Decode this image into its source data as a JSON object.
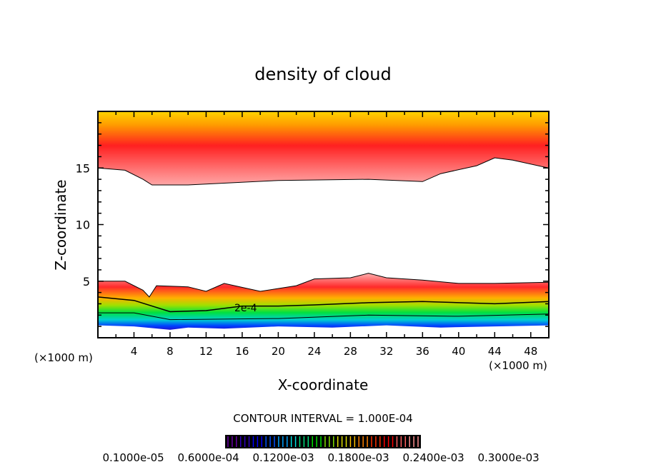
{
  "chart_data": {
    "type": "heatmap",
    "title": "density of cloud",
    "xlabel": "X-coordinate",
    "ylabel": "Z-coordinate",
    "x_unit_label": "(×1000 m)",
    "y_unit_label": "(×1000 m)",
    "xlim": [
      0,
      50
    ],
    "ylim": [
      0,
      20
    ],
    "xticks": [
      4,
      8,
      12,
      16,
      20,
      24,
      28,
      32,
      36,
      40,
      44,
      48
    ],
    "yticks": [
      5,
      10,
      15
    ],
    "contour_interval_text": "CONTOUR INTERVAL = 1.000E-04",
    "contour_label": "2e-4",
    "colorbar_labels": [
      "0.1000e-05",
      "0.6000e-04",
      "0.1200e-03",
      "0.1800e-03",
      "0.2400e-03",
      "0.3000e-03"
    ],
    "colorbar_colors": [
      "#6a00a8",
      "#3000c0",
      "#0000ff",
      "#0050ff",
      "#00a0ff",
      "#00e0e0",
      "#00e080",
      "#00e000",
      "#80e000",
      "#e0e000",
      "#ffc000",
      "#ff8000",
      "#ff3000",
      "#ff0000",
      "#ff6060",
      "#ff9090"
    ],
    "upper_cloud_base": [
      [
        0,
        15
      ],
      [
        3,
        14.8
      ],
      [
        5,
        14
      ],
      [
        6,
        13.5
      ],
      [
        10,
        13.5
      ],
      [
        20,
        13.9
      ],
      [
        30,
        14
      ],
      [
        36,
        13.8
      ],
      [
        38,
        14.5
      ],
      [
        42,
        15.2
      ],
      [
        44,
        15.9
      ],
      [
        46,
        15.7
      ],
      [
        50,
        15
      ]
    ],
    "lower_cloud_top": [
      [
        0,
        5
      ],
      [
        3,
        5
      ],
      [
        5,
        4.2
      ],
      [
        5.7,
        3.6
      ],
      [
        6.5,
        4.6
      ],
      [
        10,
        4.5
      ],
      [
        12,
        4.1
      ],
      [
        14,
        4.8
      ],
      [
        18,
        4.1
      ],
      [
        22,
        4.6
      ],
      [
        24,
        5.2
      ],
      [
        28,
        5.3
      ],
      [
        30,
        5.7
      ],
      [
        32,
        5.3
      ],
      [
        36,
        5.1
      ],
      [
        40,
        4.8
      ],
      [
        44,
        4.8
      ],
      [
        50,
        4.9
      ]
    ],
    "contour_2e-4": [
      [
        0,
        3.6
      ],
      [
        4,
        3.3
      ],
      [
        8,
        2.3
      ],
      [
        12,
        2.4
      ],
      [
        16,
        2.8
      ],
      [
        20,
        2.8
      ],
      [
        24,
        2.9
      ],
      [
        30,
        3.1
      ],
      [
        36,
        3.2
      ],
      [
        44,
        3.0
      ],
      [
        50,
        3.2
      ]
    ],
    "contour_1e-4": [
      [
        0,
        2.2
      ],
      [
        4,
        2.2
      ],
      [
        8,
        1.6
      ],
      [
        20,
        1.7
      ],
      [
        30,
        2.0
      ],
      [
        40,
        1.9
      ],
      [
        50,
        2.1
      ]
    ],
    "lower_cloud_base": [
      [
        0,
        1.1
      ],
      [
        4,
        1.0
      ],
      [
        8,
        0.7
      ],
      [
        10,
        0.9
      ],
      [
        14,
        0.8
      ],
      [
        20,
        1.0
      ],
      [
        26,
        0.9
      ],
      [
        32,
        1.1
      ],
      [
        38,
        0.9
      ],
      [
        44,
        1.0
      ],
      [
        50,
        1.1
      ]
    ]
  }
}
